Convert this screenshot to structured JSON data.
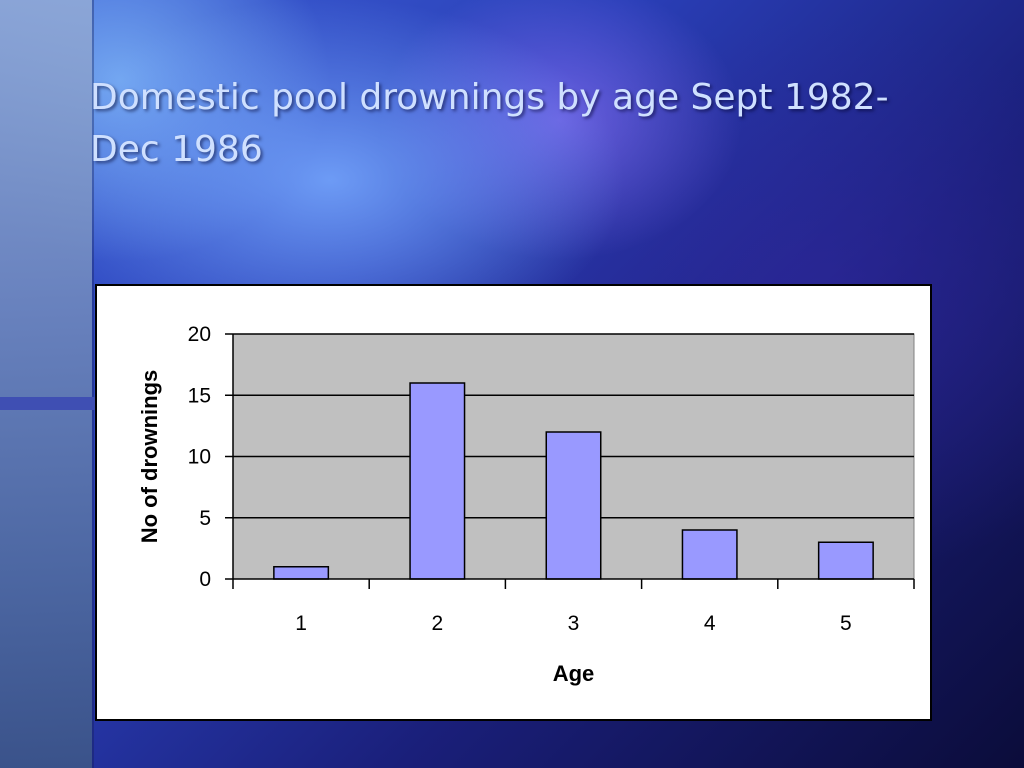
{
  "slide": {
    "title": "Domestic pool drownings by age Sept 1982-Dec 1986"
  },
  "chart_data": {
    "type": "bar",
    "title": "",
    "xlabel": "Age",
    "ylabel": "No of drownings",
    "categories": [
      "1",
      "2",
      "3",
      "4",
      "5"
    ],
    "values": [
      1,
      16,
      12,
      4,
      3
    ],
    "ylim": [
      0,
      20
    ],
    "yticks": [
      0,
      5,
      10,
      15,
      20
    ],
    "grid": true,
    "legend": "none",
    "colors": {
      "bar_fill": "#9999ff",
      "plot_background": "#c0c0c0",
      "gridline": "#000000"
    }
  }
}
